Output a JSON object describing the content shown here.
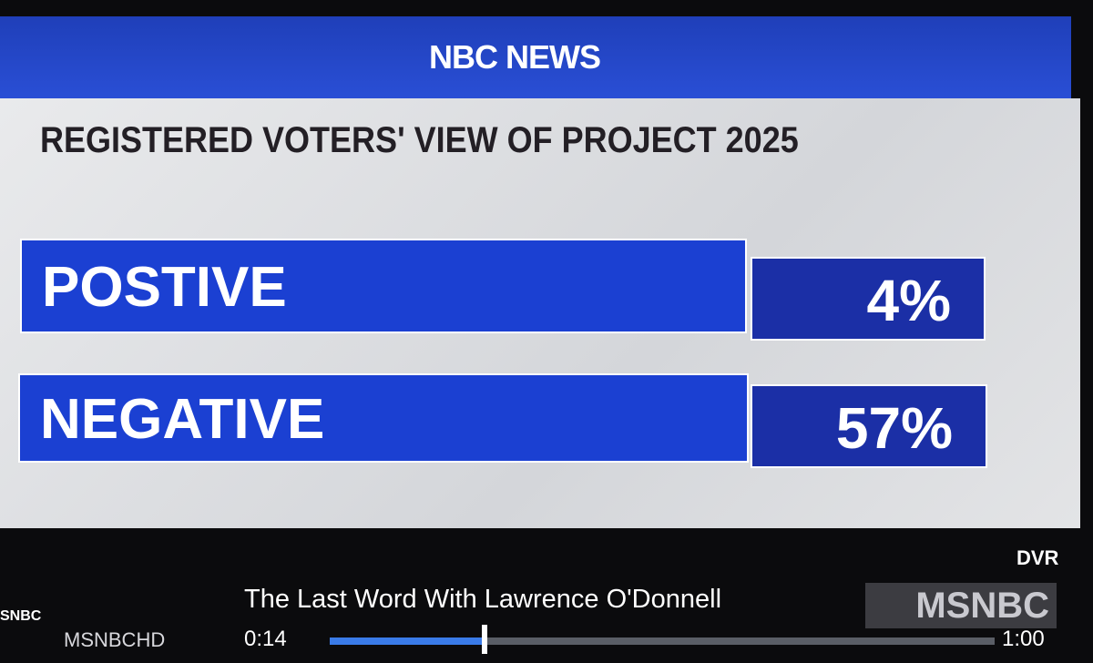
{
  "header": {
    "logo": "NBC NEWS"
  },
  "graphic": {
    "title": "REGISTERED VOTERS' VIEW OF PROJECT 2025",
    "rows": [
      {
        "label": "POSTIVE",
        "value": "4%"
      },
      {
        "label": "NEGATIVE",
        "value": "57%"
      }
    ]
  },
  "player": {
    "mode": "DVR",
    "program": "The Last Word With Lawrence O'Donnell",
    "channel": "MSNBCHD",
    "elapsed": "0:14",
    "duration": "1:00",
    "network_bug": "MSNBC",
    "edge_bug": "SNBC"
  }
}
